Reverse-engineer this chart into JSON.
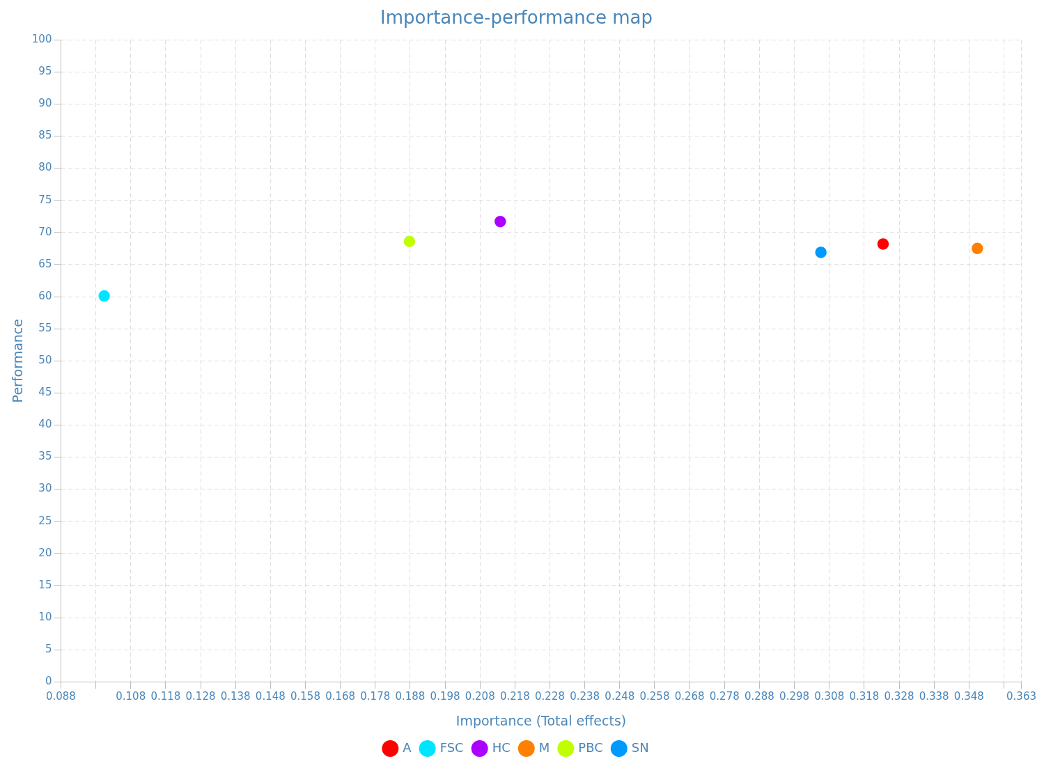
{
  "chart_data": {
    "type": "scatter",
    "title": "Importance-performance map",
    "xlabel": "Importance (Total effects)",
    "ylabel": "Performance",
    "xlim": [
      0.088,
      0.363
    ],
    "xticks": [
      0.088,
      {
        "value": 0.098,
        "label": null
      },
      0.108,
      0.118,
      0.128,
      0.138,
      0.148,
      0.158,
      0.168,
      0.178,
      0.188,
      0.198,
      0.208,
      0.218,
      0.228,
      0.238,
      0.248,
      0.258,
      0.268,
      0.278,
      0.288,
      0.298,
      0.308,
      0.318,
      0.328,
      0.338,
      0.348,
      {
        "value": 0.358,
        "label": null
      },
      0.363
    ],
    "ylim": [
      0,
      100
    ],
    "yticks": [
      0,
      5,
      10,
      15,
      20,
      25,
      30,
      35,
      40,
      45,
      50,
      55,
      60,
      65,
      70,
      75,
      80,
      85,
      90,
      95,
      100
    ],
    "grid": true,
    "legend": "bottom",
    "marker": "circle",
    "series": [
      {
        "name": "A",
        "color": "#ff0000",
        "x": [
          0.3234
        ],
        "values": [
          68.2
        ]
      },
      {
        "name": "FSC",
        "color": "#00e5ff",
        "x": [
          0.1004
        ],
        "values": [
          60.1
        ]
      },
      {
        "name": "HC",
        "color": "#aa00ff",
        "x": [
          0.2138
        ],
        "values": [
          71.7
        ]
      },
      {
        "name": "M",
        "color": "#ff8000",
        "x": [
          0.3504
        ],
        "values": [
          67.5
        ]
      },
      {
        "name": "PBC",
        "color": "#bfff00",
        "x": [
          0.1878
        ],
        "values": [
          68.6
        ]
      },
      {
        "name": "SN",
        "color": "#0099ff",
        "x": [
          0.3056
        ],
        "values": [
          66.9
        ]
      }
    ]
  }
}
